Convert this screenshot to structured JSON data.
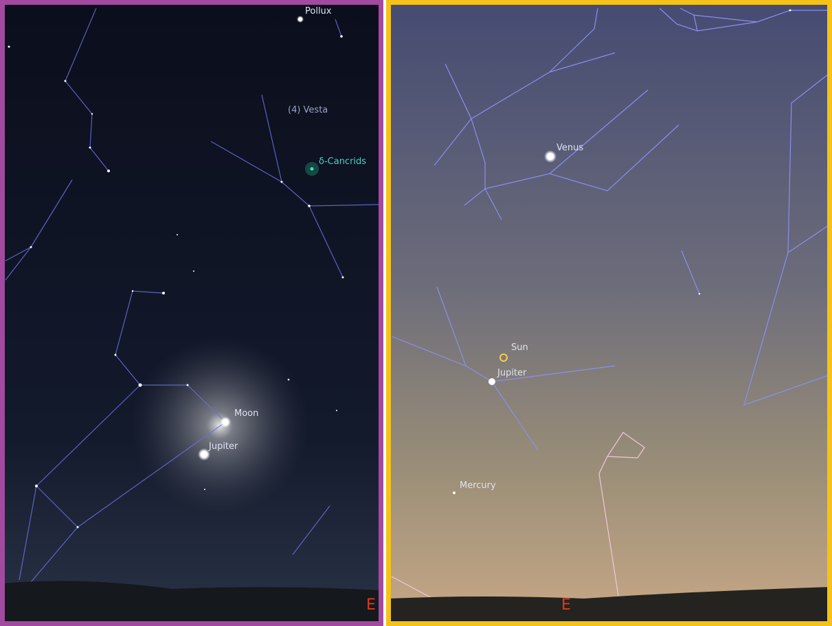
{
  "left_panel": {
    "labels": {
      "pollux": "Pollux",
      "vesta": "(4) Vesta",
      "cancrids": "δ-Cancrids",
      "moon": "Moon",
      "jupiter": "Jupiter"
    },
    "direction": "E"
  },
  "right_panel": {
    "labels": {
      "venus": "Venus",
      "sun": "Sun",
      "jupiter": "Jupiter",
      "mercury": "Mercury"
    },
    "direction": "E"
  }
}
